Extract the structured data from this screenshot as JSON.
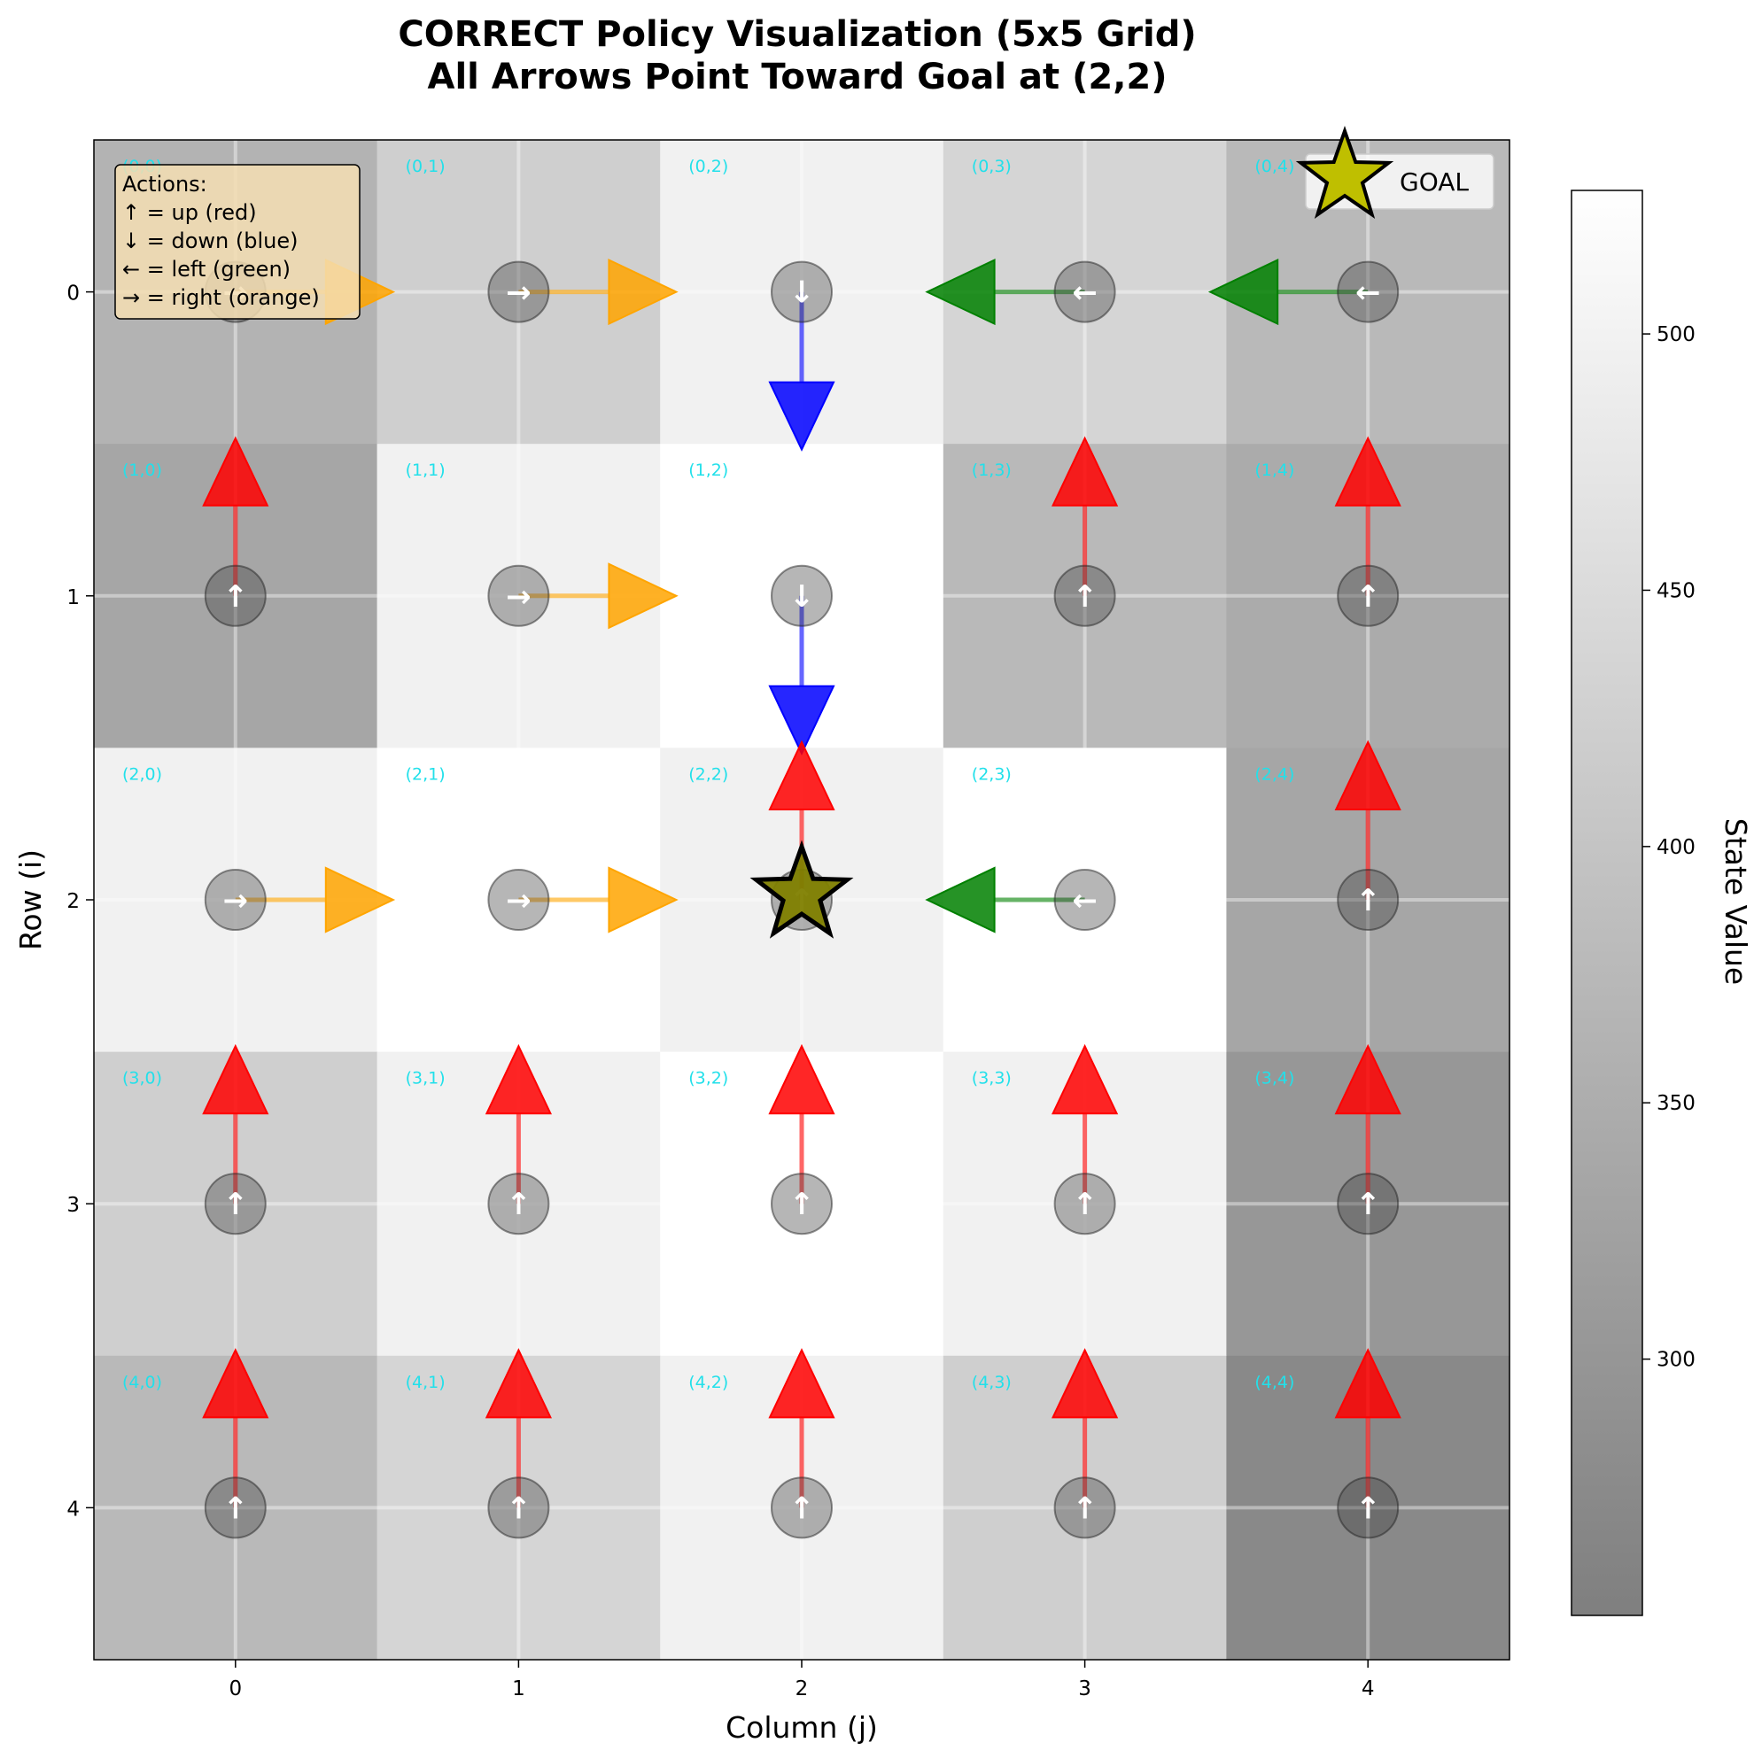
{
  "chart_data": {
    "type": "heatmap",
    "title_lines": [
      "CORRECT Policy Visualization (5x5 Grid)",
      "All Arrows Point Toward Goal at (2,2)"
    ],
    "xlabel": "Column (j)",
    "ylabel": "Row (i)",
    "x_ticks": [
      "0",
      "1",
      "2",
      "3",
      "4"
    ],
    "y_ticks": [
      "0",
      "1",
      "2",
      "3",
      "4"
    ],
    "goal": [
      2,
      2
    ],
    "values": [
      [
        363,
        423,
        497,
        436,
        375
      ],
      [
        334,
        497,
        527,
        375,
        346
      ],
      [
        497,
        527,
        497,
        527,
        334
      ],
      [
        423,
        497,
        527,
        497,
        303
      ],
      [
        375,
        436,
        497,
        423,
        272
      ]
    ],
    "policy": [
      [
        "right",
        "right",
        "down",
        "left",
        "left"
      ],
      [
        "up",
        "right",
        "down",
        "up",
        "up"
      ],
      [
        "right",
        "right",
        "up",
        "left",
        "up"
      ],
      [
        "up",
        "up",
        "up",
        "up",
        "up"
      ],
      [
        "up",
        "up",
        "up",
        "up",
        "up"
      ]
    ],
    "cell_labels": [
      [
        "(0,0)",
        "(0,1)",
        "(0,2)",
        "(0,3)",
        "(0,4)"
      ],
      [
        "(1,0)",
        "(1,1)",
        "(1,2)",
        "(1,3)",
        "(1,4)"
      ],
      [
        "(2,0)",
        "(2,1)",
        "(2,2)",
        "(2,3)",
        "(2,4)"
      ],
      [
        "(3,0)",
        "(3,1)",
        "(3,2)",
        "(3,3)",
        "(3,4)"
      ],
      [
        "(4,0)",
        "(4,1)",
        "(4,2)",
        "(4,3)",
        "(4,4)"
      ]
    ],
    "colorbar": {
      "label": "State Value",
      "range": [
        250,
        528
      ],
      "ticks": [
        300,
        350,
        400,
        450,
        500
      ]
    },
    "legend_actions": {
      "heading": "Actions:",
      "items": [
        "↑ = up (red)",
        "↓ = down (blue)",
        "← = left (green)",
        "→ = right (orange)"
      ]
    },
    "legend_goal": "GOAL",
    "action_colors": {
      "up": "#ff0000",
      "down": "#0000ff",
      "left": "#008000",
      "right": "#ffa500"
    },
    "action_glyphs": {
      "up": "↑",
      "down": "↓",
      "left": "←",
      "right": "→"
    },
    "grid": true
  }
}
